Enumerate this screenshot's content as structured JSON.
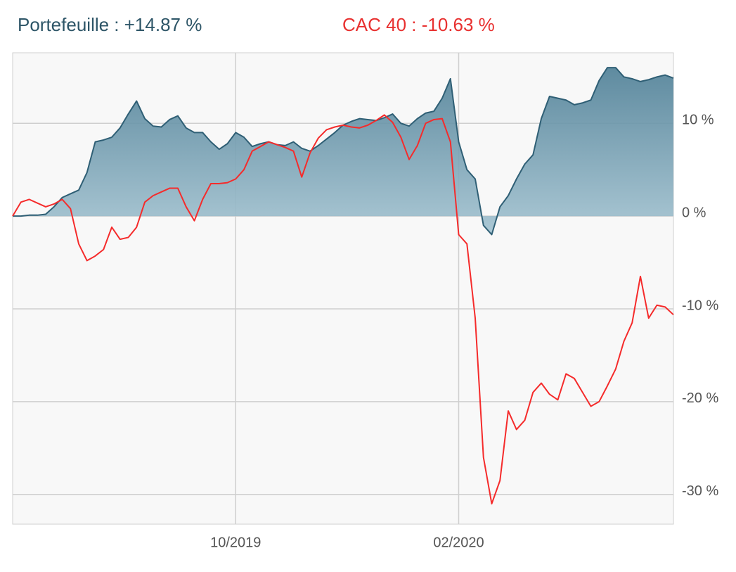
{
  "chart_data": {
    "type": "line",
    "categories": [
      null,
      null,
      null,
      null,
      null,
      null,
      null,
      null,
      null,
      null,
      null,
      null,
      null,
      null,
      null,
      null,
      null,
      null,
      null,
      null,
      null,
      null,
      null,
      null,
      null,
      null,
      null,
      "10/2019",
      null,
      null,
      null,
      null,
      null,
      null,
      null,
      null,
      null,
      null,
      null,
      null,
      null,
      null,
      null,
      null,
      null,
      null,
      null,
      null,
      null,
      null,
      null,
      null,
      null,
      null,
      "02/2020",
      null,
      null,
      null,
      null,
      null,
      null,
      null,
      null,
      null,
      null,
      null,
      null,
      null,
      null,
      null,
      null,
      null,
      null,
      null,
      null,
      null,
      null,
      null,
      null,
      null,
      null
    ],
    "series": [
      {
        "name": "Portefeuille : +14.87 %",
        "color": "#2f5f75",
        "fill": true,
        "values": [
          0,
          0,
          0.1,
          0.1,
          0.2,
          1,
          2,
          2.4,
          2.8,
          4.7,
          8,
          8.2,
          8.5,
          9.5,
          11,
          12.4,
          10.5,
          9.7,
          9.6,
          10.4,
          10.8,
          9.5,
          9,
          9,
          8,
          7.2,
          7.8,
          9,
          8.5,
          7.5,
          7.8,
          8,
          7.7,
          7.6,
          8,
          7.3,
          7,
          7.6,
          8.3,
          9,
          9.8,
          10.2,
          10.5,
          10.4,
          10.3,
          10.6,
          11,
          10,
          9.7,
          10.5,
          11.1,
          11.3,
          12.7,
          14.8,
          8,
          5,
          4,
          -1,
          -2,
          1,
          2.2,
          4,
          5.6,
          6.6,
          10.5,
          12.9,
          12.7,
          12.5,
          12,
          12.2,
          12.5,
          14.6,
          16,
          16,
          15,
          14.8,
          14.5,
          14.7,
          15,
          15.2,
          14.87
        ]
      },
      {
        "name": "CAC 40 : -10.63 %",
        "color": "#f52b2b",
        "fill": false,
        "values": [
          0,
          1.5,
          1.8,
          1.4,
          1,
          1.3,
          1.8,
          0.8,
          -3,
          -4.8,
          -4.3,
          -3.6,
          -1.2,
          -2.5,
          -2.3,
          -1.2,
          1.5,
          2.2,
          2.6,
          3,
          3,
          1,
          -0.5,
          1.8,
          3.5,
          3.5,
          3.6,
          4,
          5,
          7,
          7.5,
          8,
          7.7,
          7.4,
          7,
          4.2,
          6.8,
          8.4,
          9.3,
          9.6,
          9.8,
          9.6,
          9.5,
          9.8,
          10.3,
          10.9,
          10.1,
          8.5,
          6.1,
          7.6,
          10,
          10.4,
          10.5,
          8,
          -2,
          -3,
          -11,
          -26,
          -31,
          -28.5,
          -21,
          -23,
          -22,
          -19,
          -18,
          -19.2,
          -19.8,
          -17,
          -17.5,
          -19,
          -20.5,
          -20,
          -18.3,
          -16.5,
          -13.5,
          -11.5,
          -6.5,
          -11,
          -9.6,
          -9.8,
          -10.63
        ]
      }
    ],
    "ylim": [
      -33.2,
      17.6
    ],
    "yticks": [
      {
        "value": 10,
        "label": "10 %"
      },
      {
        "value": 0,
        "label": "0 %"
      },
      {
        "value": -10,
        "label": "-10 %"
      },
      {
        "value": -20,
        "label": "-20 %"
      },
      {
        "value": -30,
        "label": "-30 %"
      }
    ],
    "grid": true
  }
}
